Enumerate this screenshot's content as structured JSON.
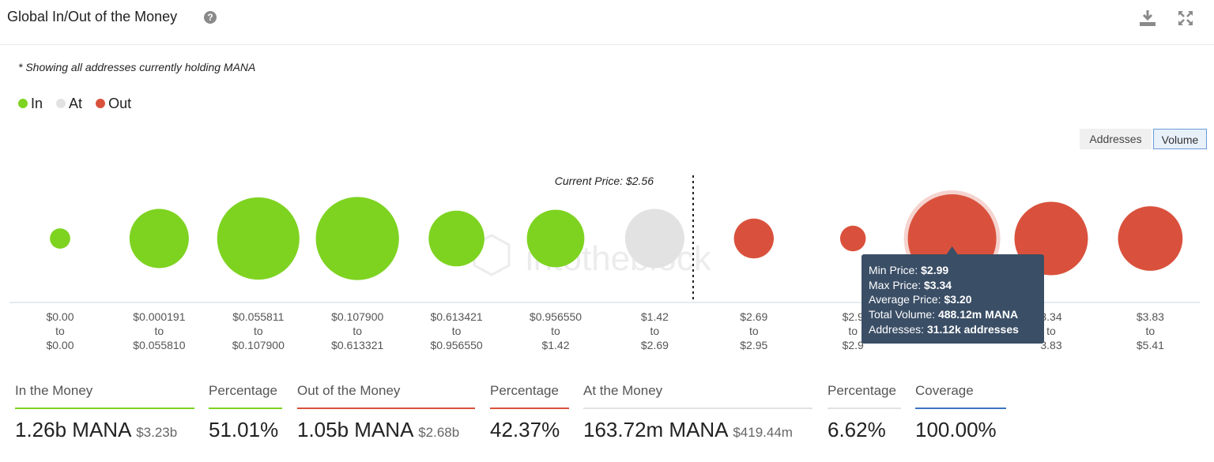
{
  "header": {
    "title": "Global In/Out of the Money",
    "help_glyph": "?"
  },
  "note": "* Showing all addresses currently holding MANA",
  "legend": [
    {
      "label": "In",
      "color": "#7ed321"
    },
    {
      "label": "At",
      "color": "#e2e2e2"
    },
    {
      "label": "Out",
      "color": "#d9513c"
    }
  ],
  "toggles": {
    "addresses": "Addresses",
    "volume": "Volume"
  },
  "watermark": "intotheblock",
  "chart_data": {
    "type": "bubble",
    "current_price_label": "Current Price: $2.56",
    "value_metric": "Volume",
    "buckets": [
      {
        "range_from": "$0.00",
        "range_to": "$0.00",
        "status": "In",
        "relative_size": 0.23
      },
      {
        "range_from": "$0.000191",
        "range_to": "$0.055810",
        "status": "In",
        "relative_size": 0.67
      },
      {
        "range_from": "$0.055811",
        "range_to": "$0.107900",
        "status": "In",
        "relative_size": 0.93
      },
      {
        "range_from": "$0.107900",
        "range_to": "$0.613321",
        "status": "In",
        "relative_size": 0.94
      },
      {
        "range_from": "$0.613421",
        "range_to": "$0.956550",
        "status": "In",
        "relative_size": 0.63
      },
      {
        "range_from": "$0.956550",
        "range_to": "$1.42",
        "status": "In",
        "relative_size": 0.65
      },
      {
        "range_from": "$1.42",
        "range_to": "$2.69",
        "status": "At",
        "relative_size": 0.67
      },
      {
        "range_from": "$2.69",
        "range_to": "$2.95",
        "status": "Out",
        "relative_size": 0.45
      },
      {
        "range_from": "$2.9",
        "range_to": "$2.9",
        "status": "Out",
        "relative_size": 0.29
      },
      {
        "range_from": "",
        "range_to": "",
        "status": "Out",
        "relative_size": 1.0,
        "highlighted": true
      },
      {
        "range_from": "3.34",
        "range_to": "3.83",
        "status": "Out",
        "relative_size": 0.83
      },
      {
        "range_from": "$3.83",
        "range_to": "$5.41",
        "status": "Out",
        "relative_size": 0.73
      }
    ],
    "tooltip": {
      "min_price_label": "Min Price:",
      "min_price": "$2.99",
      "max_price_label": "Max Price:",
      "max_price": "$3.34",
      "avg_price_label": "Average Price:",
      "avg_price": "$3.20",
      "total_volume_label": "Total Volume:",
      "total_volume": "488.12m MANA",
      "addresses_label": "Addresses:",
      "addresses": "31.12k addresses"
    }
  },
  "stats": [
    {
      "label": "In the Money",
      "value": "1.26b MANA",
      "sub": "$3.23b",
      "color": "#7ed321"
    },
    {
      "label": "Percentage",
      "value": "51.01%",
      "sub": "",
      "color": "#7ed321"
    },
    {
      "label": "Out of the Money",
      "value": "1.05b MANA",
      "sub": "$2.68b",
      "color": "#d9513c"
    },
    {
      "label": "Percentage",
      "value": "42.37%",
      "sub": "",
      "color": "#d9513c"
    },
    {
      "label": "At the Money",
      "value": "163.72m MANA",
      "sub": "$419.44m",
      "color": "#e2e2e2"
    },
    {
      "label": "Percentage",
      "value": "6.62%",
      "sub": "",
      "color": "#e2e2e2"
    },
    {
      "label": "Coverage",
      "value": "100.00%",
      "sub": "",
      "color": "#3d74c4"
    }
  ]
}
